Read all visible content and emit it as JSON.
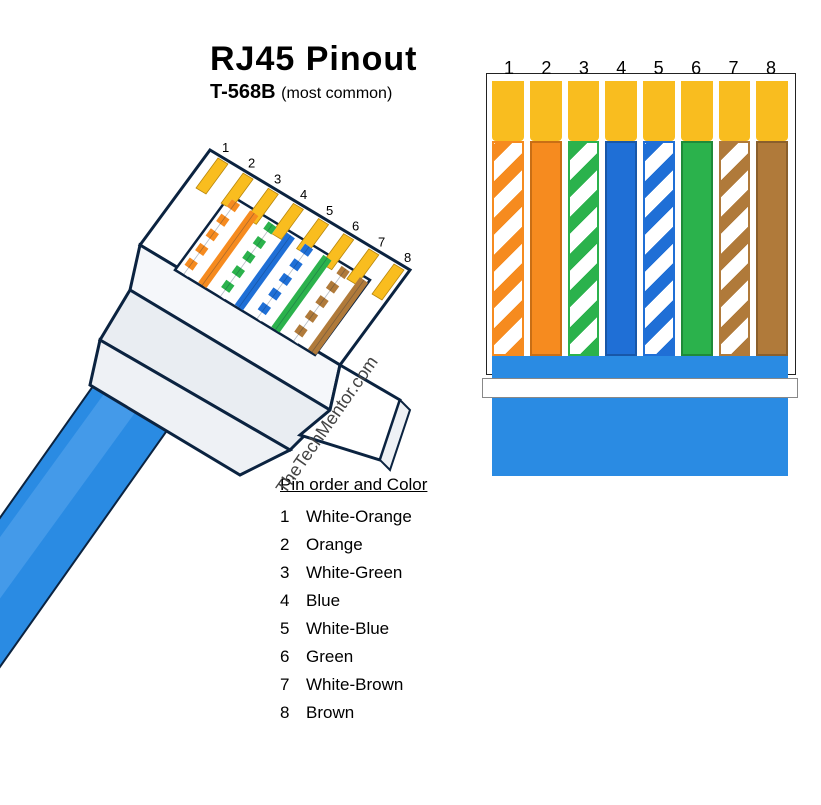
{
  "title": {
    "main": "RJ45  Pinout",
    "sub": "T-568B",
    "paren": "(most common)"
  },
  "credit": "TheTechMentor.com",
  "pin_numbers": [
    "1",
    "2",
    "3",
    "4",
    "5",
    "6",
    "7",
    "8"
  ],
  "colors": {
    "gold": "#f9bd1f",
    "orange": "#f68b1f",
    "green": "#2bb24c",
    "blue": "#1f6fd6",
    "brown": "#b07a3a",
    "cable": "#2a8be3",
    "cable_light": "#5aa8ef",
    "outline": "#0b2340",
    "white": "#ffffff",
    "text": "#000000"
  },
  "chart": {
    "type": "wiring-diagram",
    "wires": [
      {
        "pin": 1,
        "style": "striped",
        "stripe": "#f68b1f",
        "border": "#f68b1f"
      },
      {
        "pin": 2,
        "style": "solid",
        "fill": "#f68b1f",
        "border": "#c96f15"
      },
      {
        "pin": 3,
        "style": "striped",
        "stripe": "#2bb24c",
        "border": "#2bb24c"
      },
      {
        "pin": 4,
        "style": "solid",
        "fill": "#1f6fd6",
        "border": "#1857a8"
      },
      {
        "pin": 5,
        "style": "striped",
        "stripe": "#1f6fd6",
        "border": "#1f6fd6"
      },
      {
        "pin": 6,
        "style": "solid",
        "fill": "#2bb24c",
        "border": "#1f8a39"
      },
      {
        "pin": 7,
        "style": "striped",
        "stripe": "#b07a3a",
        "border": "#b07a3a"
      },
      {
        "pin": 8,
        "style": "solid",
        "fill": "#b07a3a",
        "border": "#8a5f2c"
      }
    ],
    "gold_count": 8,
    "jacket_color": "#2a8be3"
  },
  "pin_list": {
    "heading": "Pin order and Color",
    "rows": [
      {
        "n": "1",
        "label": "White-Orange"
      },
      {
        "n": "2",
        "label": "Orange"
      },
      {
        "n": "3",
        "label": "White-Green"
      },
      {
        "n": "4",
        "label": "Blue"
      },
      {
        "n": "5",
        "label": "White-Blue"
      },
      {
        "n": "6",
        "label": "Green"
      },
      {
        "n": "7",
        "label": "White-Brown"
      },
      {
        "n": "8",
        "label": "Brown"
      }
    ]
  },
  "iso": {
    "pin_labels": [
      "1",
      "2",
      "3",
      "4",
      "5",
      "6",
      "7",
      "8"
    ],
    "wire_colors": [
      "#f68b1f",
      "#f68b1f",
      "#2bb24c",
      "#1f6fd6",
      "#1f6fd6",
      "#2bb24c",
      "#b07a3a",
      "#b07a3a"
    ],
    "wire_striped": [
      true,
      false,
      true,
      false,
      true,
      false,
      true,
      false
    ]
  }
}
